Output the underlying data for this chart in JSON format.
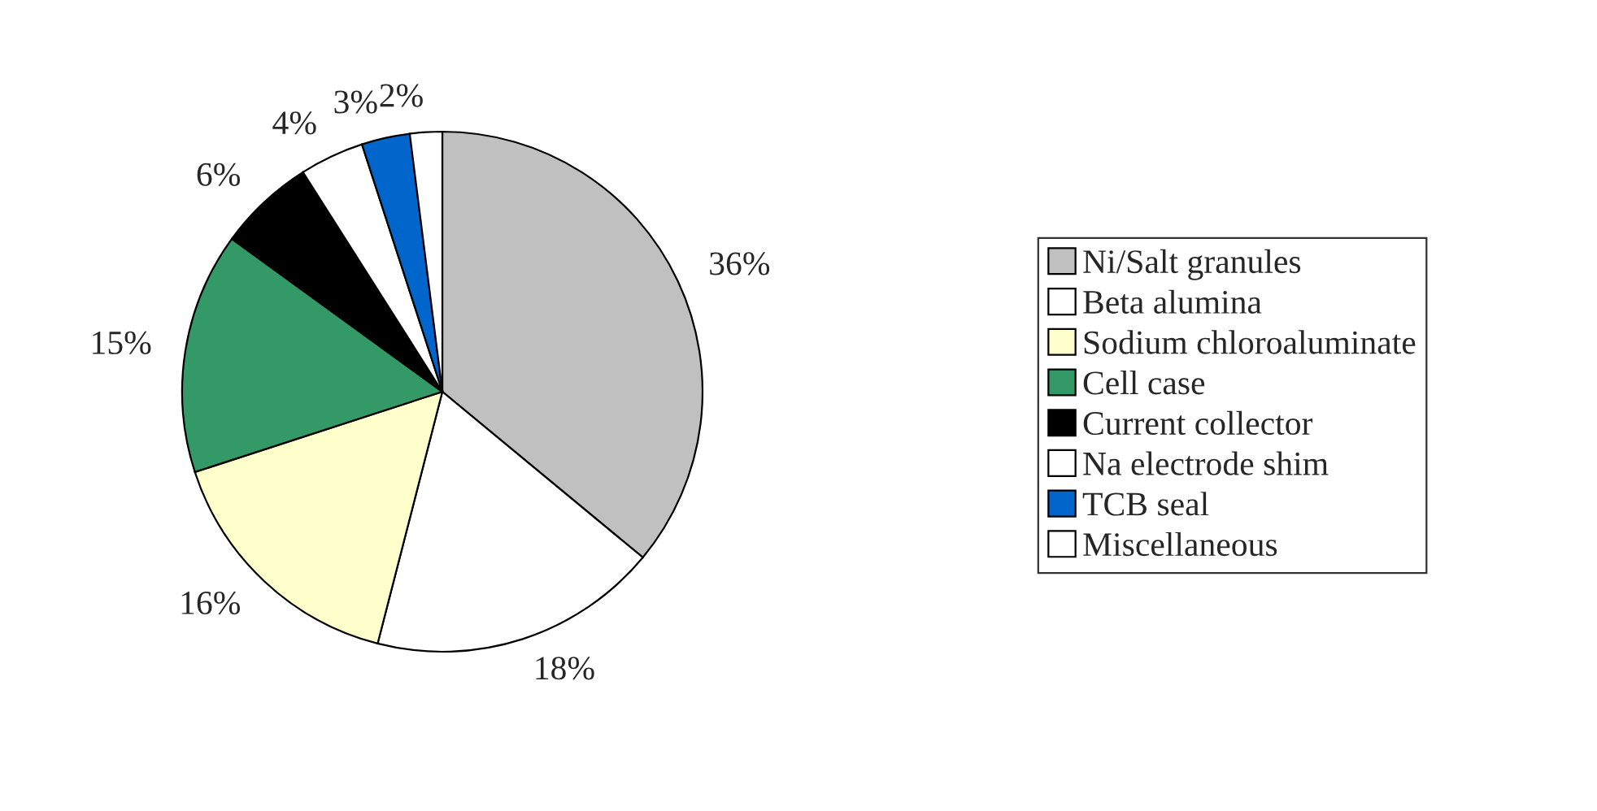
{
  "chart_data": {
    "type": "pie",
    "categories": [
      "Ni/Salt granules",
      "Beta alumina",
      "Sodium chloroaluminate",
      "Cell case",
      "Current collector",
      "Na electrode shim",
      "TCB seal",
      "Miscellaneous"
    ],
    "values": [
      36,
      18,
      16,
      15,
      6,
      4,
      3,
      2
    ],
    "value_labels": [
      "36%",
      "18%",
      "16%",
      "15%",
      "6%",
      "4%",
      "3%",
      "2%"
    ],
    "colors": [
      "#c0c0c0",
      "#ffffff",
      "#ffffcc",
      "#339966",
      "#000000",
      "#ffffff",
      "#0066cc",
      "#ffffff"
    ],
    "legend": "right"
  }
}
